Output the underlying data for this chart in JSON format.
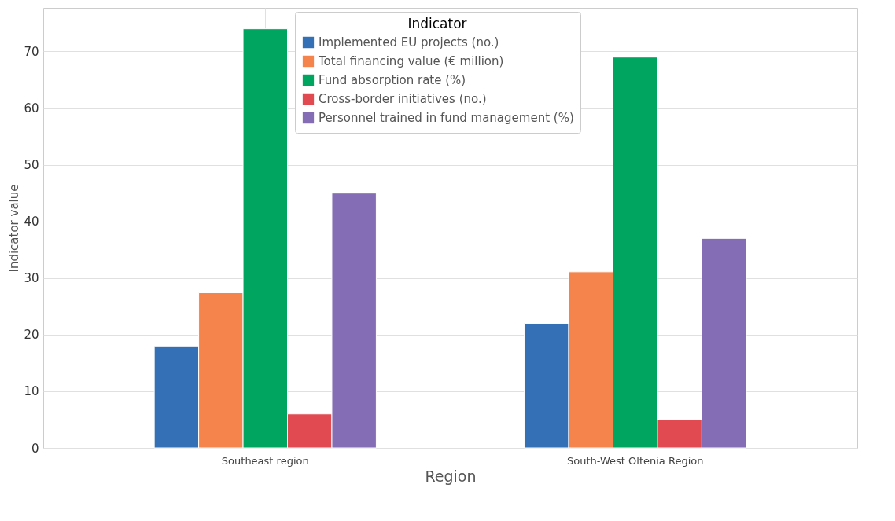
{
  "chart_data": {
    "type": "bar",
    "xlabel": "Region",
    "ylabel": "Indicator value",
    "legend_title": "Indicator",
    "categories": [
      "Southeast region",
      "South-West Oltenia Region"
    ],
    "series": [
      {
        "name": "Implemented EU projects (no.)",
        "color": "#3470b5",
        "values": [
          18,
          22
        ]
      },
      {
        "name": "Total financing value (€ million)",
        "color": "#f4844c",
        "values": [
          27.4,
          31.1
        ]
      },
      {
        "name": "Fund absorption rate (%)",
        "color": "#00a660",
        "values": [
          74,
          69
        ]
      },
      {
        "name": "Cross-border initiatives (no.)",
        "color": "#e04a50",
        "values": [
          6,
          5
        ]
      },
      {
        "name": "Personnel trained in fund management (%)",
        "color": "#846db5",
        "values": [
          45,
          37
        ]
      }
    ],
    "ylim": [
      0,
      77.7
    ],
    "yticks": [
      0,
      10,
      20,
      30,
      40,
      50,
      60,
      70
    ],
    "grid": true,
    "legend": "top"
  }
}
